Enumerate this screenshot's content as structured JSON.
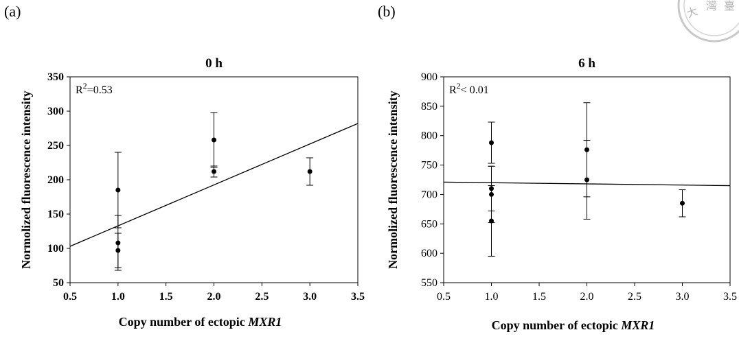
{
  "panel_labels": [
    "(a)",
    "(b)"
  ],
  "seal": {
    "text": "大 灣 臺",
    "color": "#bdbdbd"
  },
  "chart_data": [
    {
      "type": "scatter",
      "title": "0 h",
      "xlabel_prefix": "Copy number of ectopic ",
      "xlabel_italic": "MXR1",
      "ylabel": "Normolized fluorescence intensity",
      "annotation": {
        "base": "R",
        "sup": "2",
        "rest": "=0.53"
      },
      "xlim": [
        0.5,
        3.5
      ],
      "ylim": [
        50,
        350
      ],
      "xticks": [
        "0.5",
        "1.0",
        "1.5",
        "2.0",
        "2.5",
        "3.0",
        "3.5"
      ],
      "yticks": [
        "50",
        "100",
        "150",
        "200",
        "250",
        "300",
        "350"
      ],
      "tick_labels_bold": true,
      "points": [
        {
          "x": 1.0,
          "y": 185,
          "err": 55
        },
        {
          "x": 1.0,
          "y": 108,
          "err": 40
        },
        {
          "x": 1.0,
          "y": 97,
          "err": 25
        },
        {
          "x": 2.0,
          "y": 258,
          "err": 40
        },
        {
          "x": 2.0,
          "y": 212,
          "err": 8
        },
        {
          "x": 3.0,
          "y": 212,
          "err": 20
        }
      ],
      "trendline": {
        "x0": 0.5,
        "y0": 103,
        "x1": 3.5,
        "y1": 282
      }
    },
    {
      "type": "scatter",
      "title": "6 h",
      "xlabel_prefix": "Copy number of ectopic ",
      "xlabel_italic": "MXR1",
      "ylabel": "Normolized fluorescence intensity",
      "annotation": {
        "base": "R",
        "sup": "2",
        "rest": "< 0.01"
      },
      "xlim": [
        0.5,
        3.5
      ],
      "ylim": [
        550,
        900
      ],
      "xticks": [
        "0.5",
        "1.0",
        "1.5",
        "2.0",
        "2.5",
        "3.0",
        "3.5"
      ],
      "yticks": [
        "550",
        "600",
        "650",
        "700",
        "750",
        "800",
        "850",
        "900"
      ],
      "tick_labels_bold": false,
      "points": [
        {
          "x": 1.0,
          "y": 788,
          "err": 35
        },
        {
          "x": 1.0,
          "y": 710,
          "err": 38
        },
        {
          "x": 1.0,
          "y": 700,
          "err": 48
        },
        {
          "x": 1.0,
          "y": 655,
          "err": 60
        },
        {
          "x": 2.0,
          "y": 776,
          "err": 80
        },
        {
          "x": 2.0,
          "y": 725,
          "err": 67
        },
        {
          "x": 3.0,
          "y": 685,
          "err": 23
        }
      ],
      "trendline": {
        "x0": 0.5,
        "y0": 721,
        "x1": 3.5,
        "y1": 715
      }
    }
  ]
}
